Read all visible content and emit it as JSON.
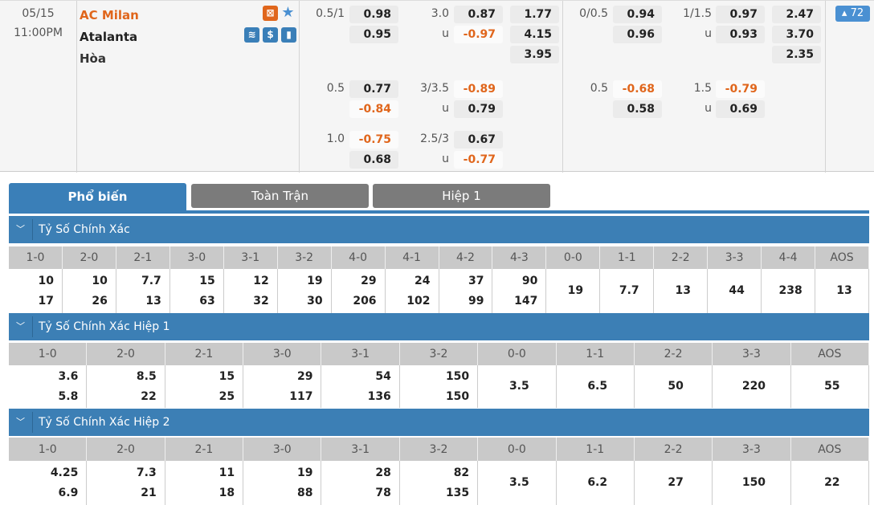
{
  "match": {
    "date": "05/15",
    "time": "11:00PM",
    "home": "AC Milan",
    "away": "Atalanta",
    "draw": "Hòa",
    "more_count": "72",
    "colors": {
      "home": "#e0661c",
      "negative": "#e0661c",
      "accent": "#3a7fb8"
    },
    "icons": [
      "field-icon",
      "star-icon",
      "lineup-icon",
      "dollar-icon",
      "stats-icon"
    ]
  },
  "odds": [
    {
      "ft_hdp": "0.5/1",
      "ft_hdp_v": [
        "0.98",
        "0.95"
      ],
      "ft_ou": "3.0",
      "ft_ou_v": [
        "0.87",
        "-0.97"
      ],
      "ft_1x2": [
        "1.77",
        "4.15",
        "3.95"
      ],
      "h1_hdp": "0/0.5",
      "h1_hdp_v": [
        "0.94",
        "0.96"
      ],
      "h1_ou": "1/1.5",
      "h1_ou_v": [
        "0.97",
        "0.93"
      ],
      "h1_1x2": [
        "2.47",
        "3.70",
        "2.35"
      ]
    },
    {
      "ft_hdp": "0.5",
      "ft_hdp_v": [
        "0.77",
        "-0.84"
      ],
      "ft_ou": "3/3.5",
      "ft_ou_v": [
        "-0.89",
        "0.79"
      ],
      "h1_hdp": "0.5",
      "h1_hdp_v": [
        "-0.68",
        "0.58"
      ],
      "h1_ou": "1.5",
      "h1_ou_v": [
        "-0.79",
        "0.69"
      ]
    },
    {
      "ft_hdp": "1.0",
      "ft_hdp_v": [
        "-0.75",
        "0.68"
      ],
      "ft_ou": "2.5/3",
      "ft_ou_v": [
        "0.67",
        "-0.77"
      ]
    }
  ],
  "under_label": "u",
  "tabs": [
    "Phổ biến",
    "Toàn Trận",
    "Hiệp 1"
  ],
  "sections": [
    {
      "title": "Tỷ Số Chính Xác",
      "scores": [
        "1-0",
        "2-0",
        "2-1",
        "3-0",
        "3-1",
        "3-2",
        "4-0",
        "4-1",
        "4-2",
        "4-3",
        "0-0",
        "1-1",
        "2-2",
        "3-3",
        "4-4",
        "AOS"
      ],
      "values": [
        [
          "10",
          "17"
        ],
        [
          "10",
          "26"
        ],
        [
          "7.7",
          "13"
        ],
        [
          "15",
          "63"
        ],
        [
          "12",
          "32"
        ],
        [
          "19",
          "30"
        ],
        [
          "29",
          "206"
        ],
        [
          "24",
          "102"
        ],
        [
          "37",
          "99"
        ],
        [
          "90",
          "147"
        ],
        [
          "19"
        ],
        [
          "7.7"
        ],
        [
          "13"
        ],
        [
          "44"
        ],
        [
          "238"
        ],
        [
          "13"
        ]
      ]
    },
    {
      "title": "Tỷ Số Chính Xác Hiệp 1",
      "scores": [
        "1-0",
        "2-0",
        "2-1",
        "3-0",
        "3-1",
        "3-2",
        "0-0",
        "1-1",
        "2-2",
        "3-3",
        "AOS"
      ],
      "values": [
        [
          "3.6",
          "5.8"
        ],
        [
          "8.5",
          "22"
        ],
        [
          "15",
          "25"
        ],
        [
          "29",
          "117"
        ],
        [
          "54",
          "136"
        ],
        [
          "150",
          "150"
        ],
        [
          "3.5"
        ],
        [
          "6.5"
        ],
        [
          "50"
        ],
        [
          "220"
        ],
        [
          "55"
        ]
      ]
    },
    {
      "title": "Tỷ Số Chính Xác Hiệp 2",
      "scores": [
        "1-0",
        "2-0",
        "2-1",
        "3-0",
        "3-1",
        "3-2",
        "0-0",
        "1-1",
        "2-2",
        "3-3",
        "AOS"
      ],
      "values": [
        [
          "4.25",
          "6.9"
        ],
        [
          "7.3",
          "21"
        ],
        [
          "11",
          "18"
        ],
        [
          "19",
          "88"
        ],
        [
          "28",
          "78"
        ],
        [
          "82",
          "135"
        ],
        [
          "3.5"
        ],
        [
          "6.2"
        ],
        [
          "27"
        ],
        [
          "150"
        ],
        [
          "22"
        ]
      ]
    }
  ]
}
